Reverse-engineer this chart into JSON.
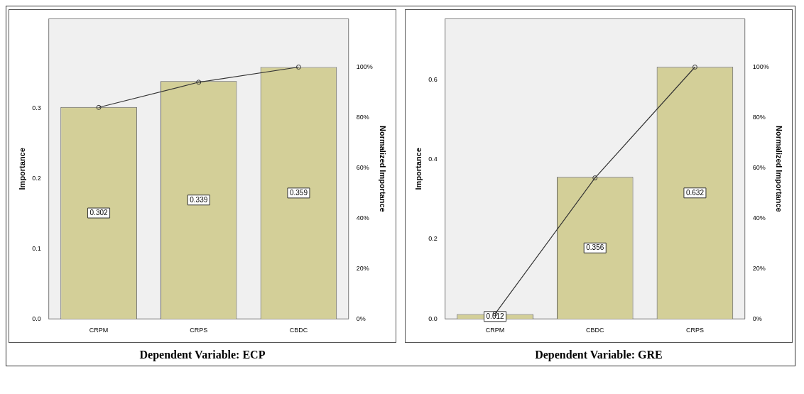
{
  "chart_data": [
    {
      "type": "bar",
      "categories": [
        "CRPM",
        "CRPS",
        "CBDC"
      ],
      "ylabel": "Importance",
      "y2label": "Normalized Importance",
      "ylim": [
        0,
        0.428
      ],
      "yticks": [
        {
          "value": 0,
          "label": "0.0"
        },
        0.1,
        0.2,
        0.3
      ],
      "y2lim": [
        0,
        119.2
      ],
      "y2ticks": [
        {
          "value": 0,
          "label": "0%"
        },
        {
          "value": 20,
          "label": "20%"
        },
        {
          "value": 40,
          "label": "40%"
        },
        {
          "value": 60,
          "label": "60%"
        },
        {
          "value": 80,
          "label": "80%"
        },
        {
          "value": 100,
          "label": "100%"
        }
      ],
      "grid": false,
      "legend": false,
      "marker": "circle",
      "annotations": [
        "Dependent Variable: ECP"
      ],
      "series": [
        {
          "color": "#d3cf98",
          "values": [
            0.302,
            0.339,
            0.359
          ],
          "value_labels": [
            "0.302",
            "0.339",
            "0.359"
          ]
        },
        {
          "type": "line",
          "axis": "y2",
          "color": "#333333",
          "values": [
            84,
            94,
            100
          ]
        }
      ]
    },
    {
      "type": "bar",
      "categories": [
        "CRPM",
        "CBDC",
        "CRPS"
      ],
      "ylabel": "Importance",
      "y2label": "Normalized Importance",
      "ylim": [
        0,
        0.753
      ],
      "yticks": [
        {
          "value": 0,
          "label": "0.0"
        },
        0.2,
        0.4,
        0.6
      ],
      "y2lim": [
        0,
        119.2
      ],
      "y2ticks": [
        {
          "value": 0,
          "label": "0%"
        },
        {
          "value": 20,
          "label": "20%"
        },
        {
          "value": 40,
          "label": "40%"
        },
        {
          "value": 60,
          "label": "60%"
        },
        {
          "value": 80,
          "label": "80%"
        },
        {
          "value": 100,
          "label": "100%"
        }
      ],
      "grid": false,
      "legend": false,
      "marker": "circle",
      "annotations": [
        "Dependent Variable: GRE"
      ],
      "series": [
        {
          "color": "#d3cf98",
          "values": [
            0.012,
            0.356,
            0.632
          ],
          "value_labels": [
            "0.012",
            "0.356",
            "0.632"
          ]
        },
        {
          "type": "line",
          "axis": "y2",
          "color": "#333333",
          "values": [
            2,
            56,
            100
          ]
        }
      ]
    }
  ]
}
